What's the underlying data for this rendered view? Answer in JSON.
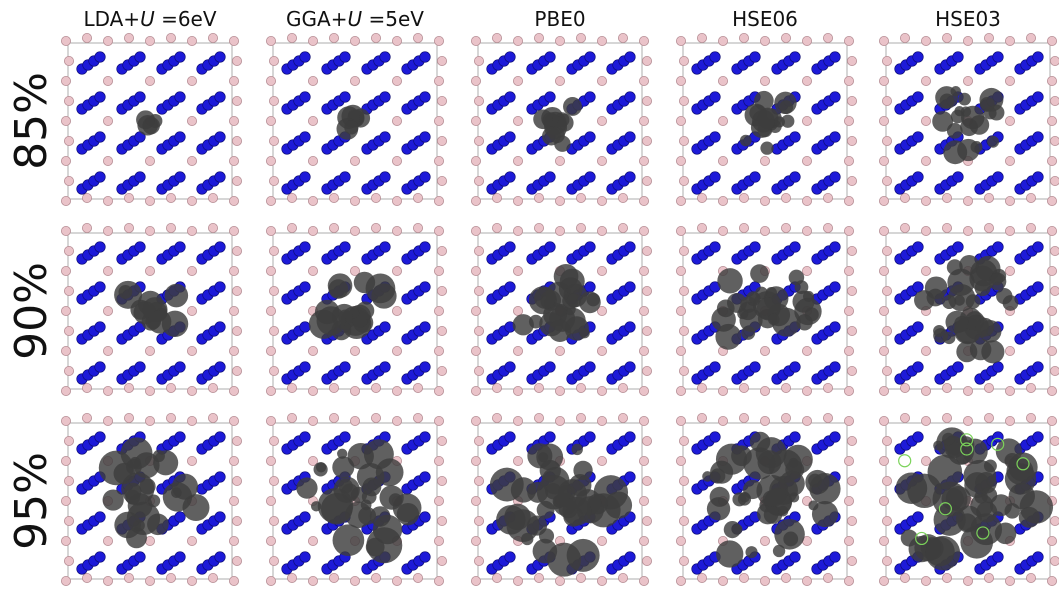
{
  "columns": [
    {
      "label_parts": [
        {
          "text": "LDA+"
        },
        {
          "text": "U",
          "italic": true
        },
        {
          "text": " =6eV"
        }
      ]
    },
    {
      "label_parts": [
        {
          "text": "GGA+"
        },
        {
          "text": "U",
          "italic": true
        },
        {
          "text": " =5eV"
        }
      ]
    },
    {
      "label_parts": [
        {
          "text": "PBE0"
        }
      ]
    },
    {
      "label_parts": [
        {
          "text": "HSE06"
        }
      ]
    },
    {
      "label_parts": [
        {
          "text": "HSE03"
        }
      ]
    }
  ],
  "rows": [
    {
      "label": "85%"
    },
    {
      "label": "90%"
    },
    {
      "label": "95%"
    }
  ]
}
